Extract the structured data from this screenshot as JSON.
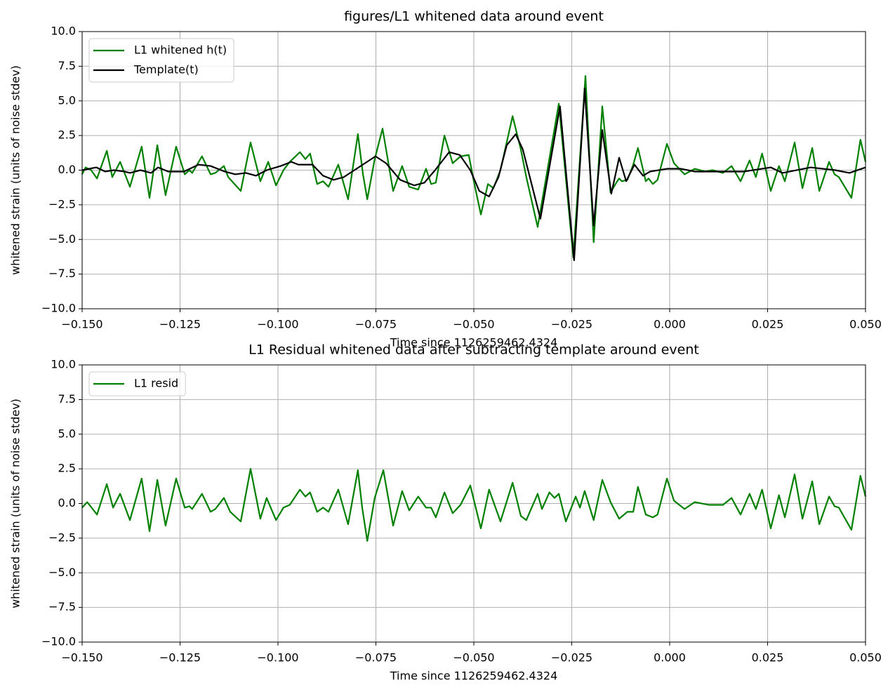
{
  "chart_data": [
    {
      "type": "line",
      "title": "figures/L1 whitened data around event",
      "xlabel": "Time since 1126259462.4324",
      "ylabel": "whitened strain (units of noise stdev)",
      "xlim": [
        -0.15,
        0.05
      ],
      "ylim": [
        -10,
        10
      ],
      "xticks": [
        {
          "value": -0.15,
          "label": "−0.150"
        },
        {
          "value": -0.125,
          "label": "−0.125"
        },
        {
          "value": -0.1,
          "label": "−0.100"
        },
        {
          "value": -0.075,
          "label": "−0.075"
        },
        {
          "value": -0.05,
          "label": "−0.050"
        },
        {
          "value": -0.025,
          "label": "−0.025"
        },
        {
          "value": 0,
          "label": "0.000"
        },
        {
          "value": 0.025,
          "label": "0.025"
        },
        {
          "value": 0.05,
          "label": "0.050"
        }
      ],
      "yticks": [
        {
          "value": -10,
          "label": "−10.0"
        },
        {
          "value": -7.5,
          "label": "−7.5"
        },
        {
          "value": -5,
          "label": "−5.0"
        },
        {
          "value": -2.5,
          "label": "−2.5"
        },
        {
          "value": 0,
          "label": "0.0"
        },
        {
          "value": 2.5,
          "label": "2.5"
        },
        {
          "value": 5,
          "label": "5.0"
        },
        {
          "value": 7.5,
          "label": "7.5"
        },
        {
          "value": 10,
          "label": "10.0"
        }
      ],
      "grid": true,
      "legend": "upper left",
      "series": [
        {
          "name": "L1 whitened h(t)",
          "color": "#008000",
          "x": [
            -0.15,
            -0.1491,
            -0.1477,
            -0.1462,
            -0.1437,
            -0.1423,
            -0.1403,
            -0.1378,
            -0.1348,
            -0.1328,
            -0.1308,
            -0.1287,
            -0.126,
            -0.1238,
            -0.1226,
            -0.1219,
            -0.1194,
            -0.1172,
            -0.116,
            -0.1138,
            -0.1127,
            -0.1095,
            -0.107,
            -0.1045,
            -0.1025,
            -0.1005,
            -0.0986,
            -0.097,
            -0.0944,
            -0.093,
            -0.0918,
            -0.09,
            -0.0885,
            -0.0871,
            -0.0846,
            -0.0821,
            -0.0796,
            -0.0783,
            -0.0772,
            -0.0753,
            -0.0733,
            -0.0706,
            -0.0683,
            -0.0665,
            -0.0642,
            -0.0622,
            -0.0609,
            -0.0597,
            -0.0575,
            -0.0554,
            -0.0534,
            -0.0513,
            -0.05,
            -0.0482,
            -0.0464,
            -0.045,
            -0.0432,
            -0.0401,
            -0.038,
            -0.0366,
            -0.0337,
            -0.0283,
            -0.0246,
            -0.0215,
            -0.0194,
            -0.0172,
            -0.0151,
            -0.0136,
            -0.0129,
            -0.0122,
            -0.0108,
            -0.0093,
            -0.0081,
            -0.0061,
            -0.0054,
            -0.0043,
            -0.0031,
            -0.0007,
            0.0011,
            0.0038,
            0.0064,
            0.0091,
            0.0109,
            0.0136,
            0.0158,
            0.0181,
            0.0204,
            0.022,
            0.0236,
            0.0258,
            0.0279,
            0.0294,
            0.0319,
            0.0339,
            0.0364,
            0.0382,
            0.0407,
            0.0421,
            0.0432,
            0.0464,
            0.0487,
            0.05
          ],
          "values": [
            -0.3,
            0.2,
            0,
            -0.6,
            1.4,
            -0.5,
            0.6,
            -1.2,
            1.7,
            -2.0,
            1.8,
            -1.8,
            1.7,
            -0.3,
            0,
            -0.2,
            1.0,
            -0.3,
            -0.2,
            0.3,
            -0.5,
            -1.5,
            2.0,
            -0.8,
            0.6,
            -1.1,
            0,
            0.6,
            1.3,
            0.8,
            1.2,
            -1.0,
            -0.8,
            -1.2,
            0.4,
            -2.1,
            2.6,
            -0.3,
            -2.1,
            0.8,
            3.0,
            -1.5,
            0.3,
            -1.2,
            -1.4,
            0.1,
            -1.0,
            -0.9,
            2.5,
            0.5,
            1.0,
            1.1,
            -0.8,
            -3.2,
            -1.0,
            -1.3,
            0,
            3.9,
            1.5,
            -0.5,
            -4.1,
            4.8,
            -6.3,
            6.8,
            -5.2,
            4.6,
            -1.6,
            -0.9,
            -0.6,
            -0.8,
            -0.7,
            0.4,
            1.6,
            -0.8,
            -0.6,
            -1.0,
            -0.7,
            1.9,
            0.5,
            -0.3,
            0.1,
            -0.1,
            0,
            -0.2,
            0.3,
            -0.8,
            0.7,
            -0.5,
            1.2,
            -1.5,
            0.3,
            -0.8,
            2.0,
            -1.3,
            1.6,
            -1.5,
            0.6,
            -0.3,
            -0.5,
            -2.0,
            2.2,
            0.6
          ]
        },
        {
          "name": "Template(t)",
          "color": "#000000",
          "x": [
            -0.15,
            -0.1464,
            -0.1441,
            -0.1419,
            -0.1392,
            -0.1378,
            -0.1351,
            -0.1324,
            -0.1306,
            -0.128,
            -0.1258,
            -0.124,
            -0.1203,
            -0.1172,
            -0.1136,
            -0.1109,
            -0.1082,
            -0.1056,
            -0.1029,
            -0.0993,
            -0.0966,
            -0.0948,
            -0.093,
            -0.0912,
            -0.0885,
            -0.0858,
            -0.0832,
            -0.0805,
            -0.0778,
            -0.0751,
            -0.0724,
            -0.0688,
            -0.0652,
            -0.0626,
            -0.0599,
            -0.0563,
            -0.0536,
            -0.0509,
            -0.0486,
            -0.0461,
            -0.0437,
            -0.0416,
            -0.0393,
            -0.0375,
            -0.033,
            -0.028,
            -0.0244,
            -0.0217,
            -0.0194,
            -0.0172,
            -0.0149,
            -0.0129,
            -0.0111,
            -0.009,
            -0.0068,
            -0.005,
            -0.0007,
            0.0029,
            0.0064,
            0.0136,
            0.019,
            0.0258,
            0.0288,
            0.036,
            0.0423,
            0.0459,
            0.05
          ],
          "values": [
            0,
            0.2,
            -0.1,
            0,
            -0.1,
            -0.2,
            0,
            -0.2,
            0.2,
            -0.1,
            -0.1,
            -0.1,
            0.4,
            0.3,
            -0.1,
            -0.3,
            -0.2,
            -0.4,
            0,
            0.3,
            0.6,
            0.4,
            0.4,
            0.4,
            -0.4,
            -0.7,
            -0.5,
            0,
            0.5,
            1.0,
            0.5,
            -0.7,
            -1.1,
            -0.9,
            0,
            1.3,
            1.1,
            0,
            -1.5,
            -1.9,
            -0.5,
            1.8,
            2.6,
            1.5,
            -3.5,
            4.6,
            -6.5,
            5.9,
            -4.0,
            2.9,
            -1.7,
            0.9,
            -0.8,
            0.4,
            -0.4,
            -0.1,
            0.1,
            0.1,
            -0.1,
            -0.1,
            -0.1,
            0.2,
            -0.2,
            0.2,
            0,
            -0.2,
            0.2
          ]
        }
      ]
    },
    {
      "type": "line",
      "title": "L1 Residual whitened data after subtracting template around event",
      "xlabel": "Time since 1126259462.4324",
      "ylabel": "whitened strain (units of noise stdev)",
      "xlim": [
        -0.15,
        0.05
      ],
      "ylim": [
        -10,
        10
      ],
      "xticks": [
        {
          "value": -0.15,
          "label": "−0.150"
        },
        {
          "value": -0.125,
          "label": "−0.125"
        },
        {
          "value": -0.1,
          "label": "−0.100"
        },
        {
          "value": -0.075,
          "label": "−0.075"
        },
        {
          "value": -0.05,
          "label": "−0.050"
        },
        {
          "value": -0.025,
          "label": "−0.025"
        },
        {
          "value": 0,
          "label": "0.000"
        },
        {
          "value": 0.025,
          "label": "0.025"
        },
        {
          "value": 0.05,
          "label": "0.050"
        }
      ],
      "yticks": [
        {
          "value": -10,
          "label": "−10.0"
        },
        {
          "value": -7.5,
          "label": "−7.5"
        },
        {
          "value": -5,
          "label": "−5.0"
        },
        {
          "value": -2.5,
          "label": "−2.5"
        },
        {
          "value": 0,
          "label": "0.0"
        },
        {
          "value": 2.5,
          "label": "2.5"
        },
        {
          "value": 5,
          "label": "5.0"
        },
        {
          "value": 7.5,
          "label": "7.5"
        },
        {
          "value": 10,
          "label": "10.0"
        }
      ],
      "grid": true,
      "legend": "upper left",
      "series": [
        {
          "name": "L1 resid",
          "color": "#008000",
          "x": [
            -0.15,
            -0.1487,
            -0.1462,
            -0.1437,
            -0.1421,
            -0.1403,
            -0.1378,
            -0.1348,
            -0.1328,
            -0.1308,
            -0.1287,
            -0.126,
            -0.1238,
            -0.1226,
            -0.1219,
            -0.1194,
            -0.1172,
            -0.116,
            -0.1138,
            -0.1122,
            -0.1095,
            -0.107,
            -0.1045,
            -0.1029,
            -0.1005,
            -0.0986,
            -0.097,
            -0.0944,
            -0.093,
            -0.0918,
            -0.09,
            -0.0885,
            -0.0871,
            -0.0846,
            -0.0821,
            -0.0796,
            -0.0785,
            -0.0772,
            -0.0753,
            -0.0731,
            -0.0706,
            -0.0683,
            -0.0665,
            -0.0642,
            -0.0622,
            -0.0609,
            -0.0597,
            -0.0575,
            -0.0554,
            -0.0534,
            -0.0509,
            -0.0482,
            -0.0461,
            -0.0432,
            -0.0401,
            -0.038,
            -0.0366,
            -0.0337,
            -0.0326,
            -0.0307,
            -0.0294,
            -0.0283,
            -0.0265,
            -0.024,
            -0.0229,
            -0.0217,
            -0.0194,
            -0.0172,
            -0.0151,
            -0.0129,
            -0.0108,
            -0.0093,
            -0.0081,
            -0.0061,
            -0.0043,
            -0.0031,
            -0.0007,
            0.0011,
            0.0038,
            0.0064,
            0.01,
            0.0136,
            0.0158,
            0.0181,
            0.0204,
            0.022,
            0.0236,
            0.0258,
            0.0279,
            0.0294,
            0.0319,
            0.0339,
            0.0364,
            0.0382,
            0.0407,
            0.0421,
            0.0432,
            0.0464,
            0.0487,
            0.05
          ],
          "values": [
            -0.3,
            0.1,
            -0.8,
            1.4,
            -0.3,
            0.7,
            -1.2,
            1.8,
            -2.0,
            1.7,
            -1.6,
            1.8,
            -0.3,
            -0.2,
            -0.4,
            0.7,
            -0.6,
            -0.4,
            0.4,
            -0.6,
            -1.3,
            2.5,
            -1.1,
            0.4,
            -1.2,
            -0.3,
            -0.1,
            1.0,
            0.5,
            0.8,
            -0.6,
            -0.3,
            -0.6,
            1.0,
            -1.5,
            2.4,
            -0.3,
            -2.7,
            0.4,
            2.4,
            -1.6,
            0.9,
            -0.5,
            0.5,
            -0.3,
            -0.3,
            -1.0,
            0.8,
            -0.7,
            -0.1,
            1.3,
            -1.8,
            1.0,
            -1.3,
            1.5,
            -0.9,
            -1.2,
            0.7,
            -0.4,
            0.8,
            0.4,
            0.7,
            -1.3,
            0.5,
            -0.3,
            0.9,
            -1.2,
            1.7,
            0.1,
            -1.1,
            -0.6,
            -0.6,
            1.2,
            -0.8,
            -1.0,
            -0.8,
            1.8,
            0.2,
            -0.4,
            0.1,
            -0.1,
            -0.1,
            0.4,
            -0.8,
            0.7,
            -0.4,
            1.0,
            -1.8,
            0.6,
            -1.0,
            2.1,
            -1.1,
            1.6,
            -1.5,
            0.5,
            -0.2,
            -0.3,
            -1.9,
            2.0,
            0.5
          ]
        }
      ]
    }
  ]
}
